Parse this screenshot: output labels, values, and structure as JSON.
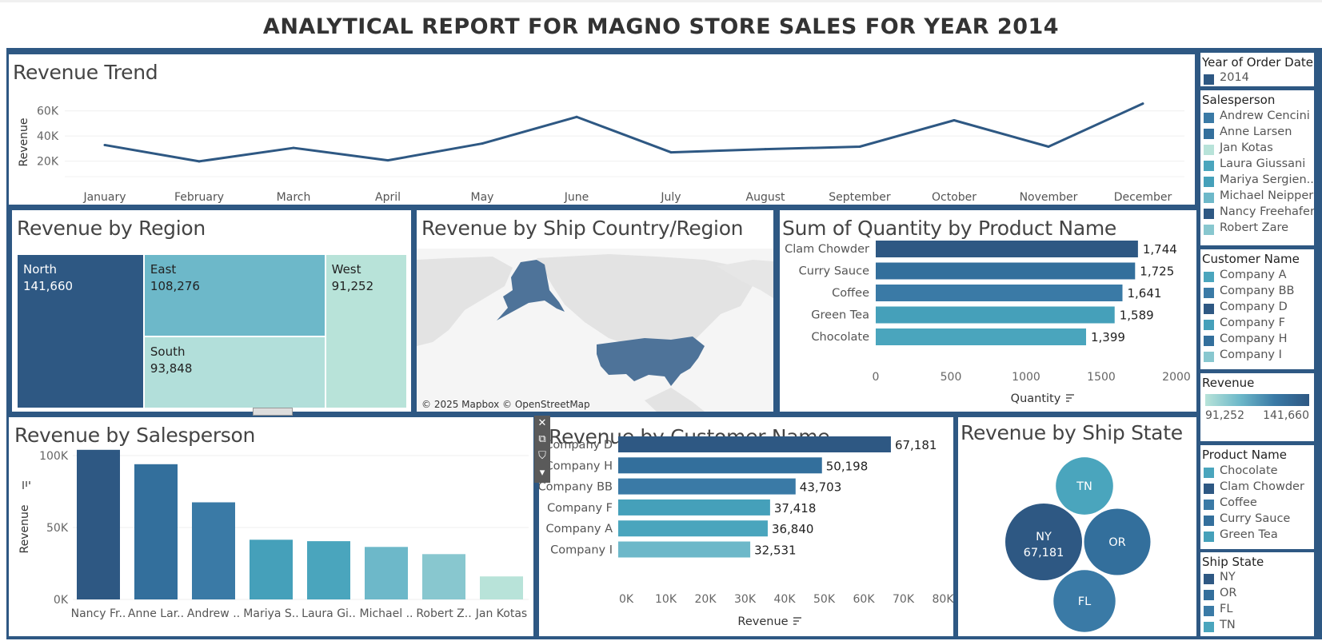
{
  "title": "ANALYTICAL REPORT FOR MAGNO STORE SALES FOR YEAR 2014",
  "colors": {
    "frame": "#2e5883",
    "dark": "#2e5883",
    "mid": "#3a7aa6",
    "teal": "#4aa5bd",
    "light_teal": "#6db8c9",
    "pale": "#b8e3d9",
    "line": "#2e5883"
  },
  "panels": {
    "trend": {
      "title": "Revenue Trend"
    },
    "region": {
      "title": "Revenue by Region"
    },
    "map": {
      "title": "Revenue by Ship Country/Region",
      "attribution": "© 2025 Mapbox © OpenStreetMap"
    },
    "quantity": {
      "title": "Sum of Quantity by Product Name"
    },
    "salesperson": {
      "title": "Revenue by Salesperson"
    },
    "customer": {
      "title": "Revenue by Customer Name"
    },
    "state": {
      "title": "Revenue by Ship State"
    }
  },
  "chart_data": [
    {
      "id": "trend",
      "type": "line",
      "title": "Revenue Trend",
      "ylabel": "Revenue",
      "xlabel": "",
      "categories": [
        "January",
        "February",
        "March",
        "April",
        "May",
        "June",
        "July",
        "August",
        "September",
        "October",
        "November",
        "December"
      ],
      "values": [
        32800,
        19800,
        30500,
        20600,
        34000,
        55200,
        27000,
        29500,
        31500,
        52500,
        31500,
        65800
      ],
      "ylim": [
        0,
        70000
      ],
      "yticks": [
        "20K",
        "40K",
        "60K"
      ],
      "ytick_values": [
        20000,
        40000,
        60000
      ]
    },
    {
      "id": "region",
      "type": "treemap",
      "title": "Revenue by Region",
      "items": [
        {
          "name": "North",
          "value": 141660,
          "label": "141,660"
        },
        {
          "name": "East",
          "value": 108276,
          "label": "108,276"
        },
        {
          "name": "South",
          "value": 93848,
          "label": "93,848"
        },
        {
          "name": "West",
          "value": 91252,
          "label": "91,252"
        }
      ]
    },
    {
      "id": "quantity",
      "type": "bar",
      "orientation": "horizontal",
      "title": "Sum of Quantity by Product Name",
      "xlabel": "Quantity",
      "categories": [
        "Clam Chowder",
        "Curry Sauce",
        "Coffee",
        "Green Tea",
        "Chocolate"
      ],
      "values": [
        1744,
        1725,
        1641,
        1589,
        1399
      ],
      "labels": [
        "1,744",
        "1,725",
        "1,641",
        "1,589",
        "1,399"
      ],
      "xlim": [
        0,
        2000
      ],
      "xticks": [
        "0",
        "500",
        "1000",
        "1500",
        "2000"
      ]
    },
    {
      "id": "salesperson",
      "type": "bar",
      "title": "Revenue by Salesperson",
      "ylabel": "Revenue",
      "categories": [
        "Nancy Fr..",
        "Anne Lar..",
        "Andrew ..",
        "Mariya S..",
        "Laura Gi..",
        "Michael ..",
        "Robert Z..",
        "Jan Kotas"
      ],
      "values": [
        104000,
        94000,
        67500,
        41500,
        40500,
        36500,
        31500,
        16000
      ],
      "ylim": [
        0,
        110000
      ],
      "yticks": [
        "0K",
        "50K",
        "100K"
      ],
      "ytick_values": [
        0,
        50000,
        100000
      ]
    },
    {
      "id": "customer",
      "type": "bar",
      "orientation": "horizontal",
      "title": "Revenue by Customer Name",
      "xlabel": "Revenue",
      "categories": [
        "Company D",
        "Company H",
        "Company BB",
        "Company F",
        "Company A",
        "Company I"
      ],
      "values": [
        67181,
        50198,
        43703,
        37418,
        36840,
        32531
      ],
      "labels": [
        "67,181",
        "50,198",
        "43,703",
        "37,418",
        "36,840",
        "32,531"
      ],
      "xlim": [
        0,
        80000
      ],
      "xticks": [
        "0K",
        "10K",
        "20K",
        "30K",
        "40K",
        "50K",
        "60K",
        "70K",
        "80K"
      ]
    },
    {
      "id": "state",
      "type": "bubble",
      "title": "Revenue by Ship State",
      "items": [
        {
          "name": "NY",
          "value": 67181,
          "label": "67,181"
        },
        {
          "name": "OR",
          "value": 50198
        },
        {
          "name": "FL",
          "value": 43703
        },
        {
          "name": "TN",
          "value": 37418
        }
      ]
    }
  ],
  "legends": {
    "year": {
      "title": "Year of Order Date",
      "items": [
        {
          "label": "2014",
          "color": "#2e5883"
        }
      ]
    },
    "salesperson": {
      "title": "Salesperson",
      "items": [
        {
          "label": "Andrew Cencini",
          "color": "#3a7aa6"
        },
        {
          "label": "Anne Larsen",
          "color": "#336f9c"
        },
        {
          "label": "Jan Kotas",
          "color": "#b8e3d9"
        },
        {
          "label": "Laura Giussani",
          "color": "#4aa5bd"
        },
        {
          "label": "Mariya Sergien..",
          "color": "#45a0ba"
        },
        {
          "label": "Michael Neipper",
          "color": "#6db8c9"
        },
        {
          "label": "Nancy Freehafer",
          "color": "#2e5883"
        },
        {
          "label": "Robert Zare",
          "color": "#88c7cf"
        }
      ]
    },
    "customer": {
      "title": "Customer Name",
      "items": [
        {
          "label": "Company A",
          "color": "#4aa5bd"
        },
        {
          "label": "Company BB",
          "color": "#3a7aa6"
        },
        {
          "label": "Company D",
          "color": "#2e5883"
        },
        {
          "label": "Company F",
          "color": "#45a0ba"
        },
        {
          "label": "Company H",
          "color": "#336f9c"
        },
        {
          "label": "Company I",
          "color": "#88c7cf"
        }
      ]
    },
    "revenue": {
      "title": "Revenue",
      "min_label": "91,252",
      "max_label": "141,660"
    },
    "product": {
      "title": "Product Name",
      "items": [
        {
          "label": "Chocolate",
          "color": "#4aa5bd"
        },
        {
          "label": "Clam Chowder",
          "color": "#2e5883"
        },
        {
          "label": "Coffee",
          "color": "#3a7aa6"
        },
        {
          "label": "Curry Sauce",
          "color": "#336f9c"
        },
        {
          "label": "Green Tea",
          "color": "#45a0ba"
        }
      ]
    },
    "ship_state": {
      "title": "Ship State",
      "items": [
        {
          "label": "NY",
          "color": "#2e5883"
        },
        {
          "label": "OR",
          "color": "#336f9c"
        },
        {
          "label": "FL",
          "color": "#3a7aa6"
        },
        {
          "label": "TN",
          "color": "#4aa5bd"
        }
      ]
    }
  },
  "toolbar": {
    "icons": [
      "close-icon",
      "popout-icon",
      "filter-icon",
      "more-icon"
    ]
  }
}
